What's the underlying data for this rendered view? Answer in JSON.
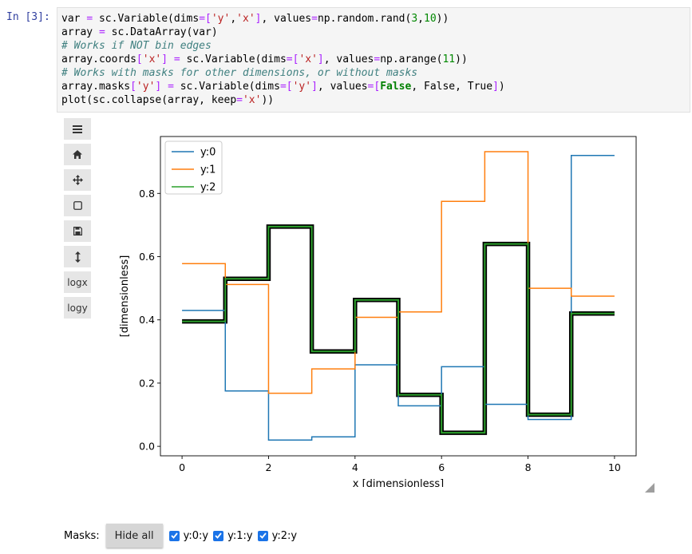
{
  "cell": {
    "prompt": "In [3]:",
    "lines": [
      "var = sc.Variable(dims=['y','x'], values=np.random.rand(3,10))",
      "array = sc.DataArray(var)",
      "# Works if NOT bin edges",
      "array.coords['x'] = sc.Variable(dims=['x'], values=np.arange(11))",
      "# Works with masks for other dimensions, or without masks",
      "array.masks['y'] = sc.Variable(dims=['y'], values=[False, False, True])",
      "plot(sc.collapse(array, keep='x'))"
    ]
  },
  "toolbar": {
    "items": [
      {
        "name": "menu-button",
        "icon": "hamburger-icon",
        "label": ""
      },
      {
        "name": "home-button",
        "icon": "home-icon",
        "label": ""
      },
      {
        "name": "pan-button",
        "icon": "move-arrows-icon",
        "label": ""
      },
      {
        "name": "zoom-button",
        "icon": "square-icon",
        "label": ""
      },
      {
        "name": "save-button",
        "icon": "floppy-icon",
        "label": ""
      },
      {
        "name": "rescale-button",
        "icon": "vertical-arrows-icon",
        "label": ""
      },
      {
        "name": "logx-button",
        "icon": "",
        "label": "logx"
      },
      {
        "name": "logy-button",
        "icon": "",
        "label": "logy"
      }
    ]
  },
  "chart_data": {
    "type": "line",
    "drawstyle": "steps-post",
    "x": [
      0,
      1,
      2,
      3,
      4,
      5,
      6,
      7,
      8,
      9,
      10
    ],
    "xticks": [
      0,
      2,
      4,
      6,
      8,
      10
    ],
    "yticks": [
      "0.0",
      "0.2",
      "0.4",
      "0.6",
      "0.8"
    ],
    "xlim": [
      -0.5,
      10.5
    ],
    "ylim": [
      -0.03,
      0.98
    ],
    "xlabel": "x [dimensionless]",
    "ylabel": "[dimensionless]",
    "legend_position": "top-left",
    "series": [
      {
        "name": "y:0",
        "color": "#1f77b4",
        "masked": false,
        "values": [
          0.43,
          0.175,
          0.02,
          0.03,
          0.258,
          0.128,
          0.252,
          0.133,
          0.085,
          0.92,
          0.92
        ]
      },
      {
        "name": "y:1",
        "color": "#ff7f0e",
        "masked": false,
        "values": [
          0.578,
          0.512,
          0.168,
          0.245,
          0.408,
          0.425,
          0.775,
          0.932,
          0.5,
          0.475,
          0.475
        ]
      },
      {
        "name": "y:2",
        "color": "#2ca02c",
        "masked": true,
        "values": [
          0.395,
          0.53,
          0.695,
          0.3,
          0.463,
          0.163,
          0.043,
          0.64,
          0.1,
          0.42,
          0.42
        ]
      }
    ]
  },
  "masks": {
    "label": "Masks:",
    "hide_all_label": "Hide all",
    "items": [
      {
        "label": "y:0:y",
        "checked": true
      },
      {
        "label": "y:1:y",
        "checked": true
      },
      {
        "label": "y:2:y",
        "checked": true
      }
    ]
  }
}
